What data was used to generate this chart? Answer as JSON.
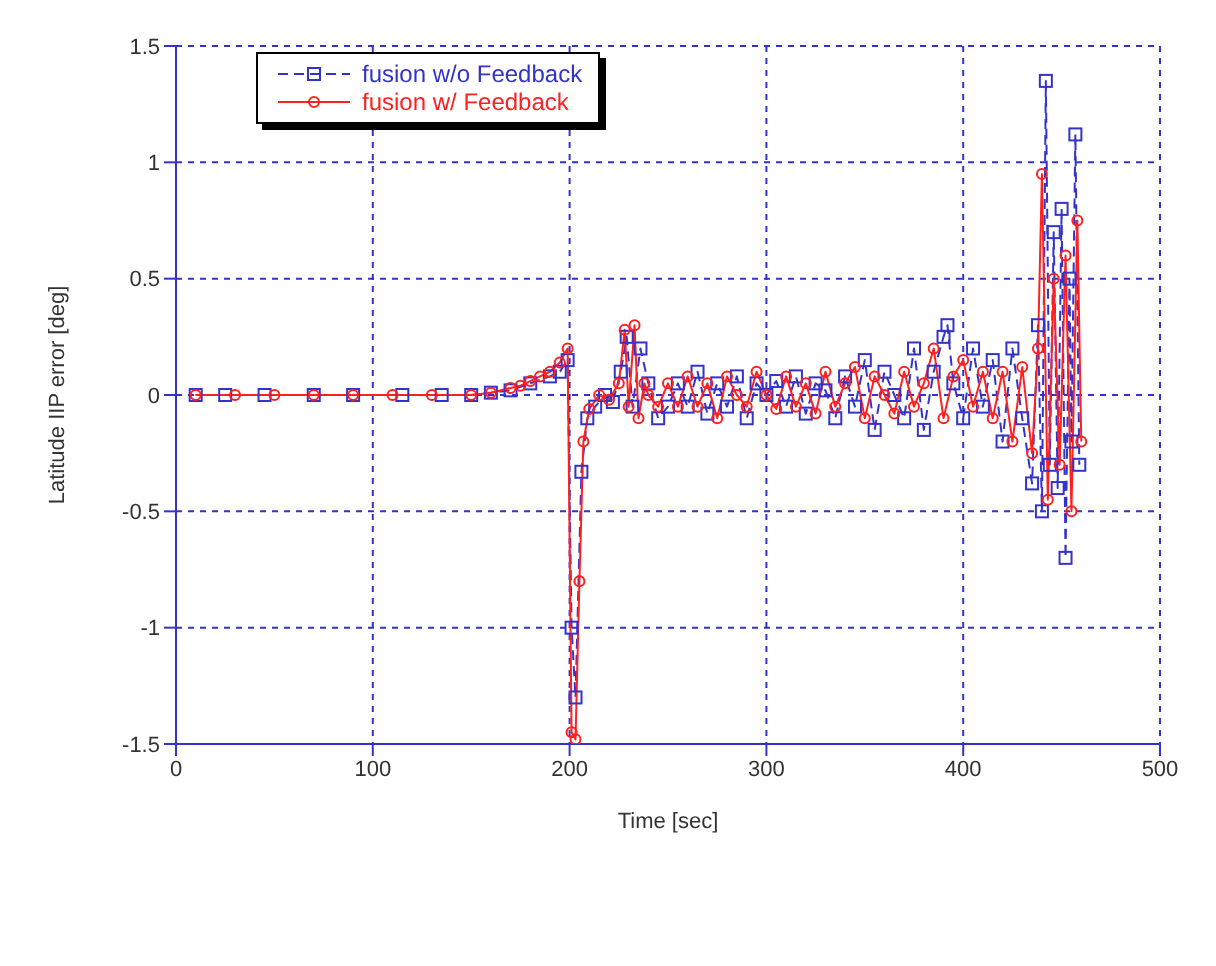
{
  "chart_data": {
    "type": "line",
    "xlabel": "Time [sec]",
    "ylabel": "Latitude IIP error [deg]",
    "xlim": [
      0,
      500
    ],
    "xticks": [
      0,
      100,
      200,
      300,
      400,
      500
    ],
    "ylim": [
      -1.5,
      1.5
    ],
    "yticks": [
      -1.5,
      -1,
      -0.5,
      0,
      0.5,
      1,
      1.5
    ],
    "grid": true,
    "legend": "top left",
    "series": [
      {
        "name": "fusion w/o Feedback",
        "color": "#3333cc",
        "line_style": "dashed",
        "marker": "square",
        "x": [
          10,
          25,
          45,
          70,
          90,
          115,
          135,
          150,
          160,
          170,
          180,
          190,
          195,
          199,
          201,
          203,
          206,
          209,
          213,
          218,
          222,
          226,
          229,
          232,
          236,
          240,
          245,
          250,
          255,
          260,
          265,
          270,
          275,
          280,
          285,
          290,
          295,
          300,
          305,
          310,
          315,
          320,
          325,
          330,
          335,
          340,
          345,
          350,
          355,
          360,
          365,
          370,
          375,
          380,
          385,
          390,
          392,
          395,
          400,
          405,
          410,
          415,
          420,
          425,
          430,
          435,
          438,
          440,
          442,
          444,
          446,
          448,
          450,
          452,
          454,
          455,
          457,
          459
        ],
        "values": [
          0,
          0,
          0,
          0,
          0,
          0,
          0,
          0,
          0.01,
          0.02,
          0.05,
          0.08,
          0.1,
          0.15,
          -1.0,
          -1.3,
          -0.33,
          -0.1,
          -0.05,
          0,
          -0.03,
          0.1,
          0.25,
          -0.05,
          0.2,
          0.05,
          -0.1,
          -0.05,
          0.05,
          -0.05,
          0.1,
          -0.08,
          0.05,
          -0.05,
          0.08,
          -0.1,
          0.05,
          0,
          0.06,
          -0.05,
          0.08,
          -0.08,
          0.05,
          0.02,
          -0.1,
          0.08,
          -0.05,
          0.15,
          -0.15,
          0.1,
          0,
          -0.1,
          0.2,
          -0.15,
          0.1,
          0.25,
          0.3,
          0.05,
          -0.1,
          0.2,
          -0.05,
          0.15,
          -0.2,
          0.2,
          -0.1,
          -0.38,
          0.3,
          -0.5,
          1.35,
          -0.3,
          0.7,
          -0.4,
          0.8,
          -0.7,
          0.5,
          -0.2,
          1.12,
          -0.3
        ]
      },
      {
        "name": "fusion w/ Feedback",
        "color": "#ff2020",
        "line_style": "solid",
        "marker": "circle",
        "x": [
          10,
          30,
          50,
          70,
          90,
          110,
          130,
          150,
          160,
          170,
          175,
          180,
          185,
          190,
          195,
          199,
          201,
          203,
          205,
          207,
          210,
          215,
          220,
          225,
          228,
          230,
          233,
          235,
          238,
          240,
          245,
          250,
          255,
          260,
          265,
          270,
          275,
          280,
          285,
          290,
          295,
          300,
          305,
          310,
          315,
          320,
          325,
          330,
          335,
          340,
          345,
          350,
          355,
          360,
          365,
          370,
          375,
          380,
          385,
          390,
          395,
          400,
          405,
          410,
          415,
          420,
          425,
          430,
          435,
          438,
          440,
          443,
          446,
          449,
          452,
          455,
          458,
          460
        ],
        "values": [
          0,
          0,
          0,
          0,
          0,
          0,
          0,
          0,
          0.01,
          0.03,
          0.04,
          0.06,
          0.08,
          0.1,
          0.14,
          0.2,
          -1.45,
          -1.48,
          -0.8,
          -0.2,
          -0.06,
          0,
          -0.02,
          0.05,
          0.28,
          -0.05,
          0.3,
          -0.1,
          0.05,
          0,
          -0.05,
          0.05,
          -0.05,
          0.08,
          -0.05,
          0.05,
          -0.1,
          0.08,
          0,
          -0.05,
          0.1,
          0,
          -0.06,
          0.08,
          -0.05,
          0.05,
          -0.08,
          0.1,
          -0.05,
          0.05,
          0.12,
          -0.1,
          0.08,
          0,
          -0.08,
          0.1,
          -0.05,
          0.05,
          0.2,
          -0.1,
          0.08,
          0.15,
          -0.05,
          0.1,
          -0.1,
          0.1,
          -0.2,
          0.12,
          -0.25,
          0.2,
          0.95,
          -0.45,
          0.5,
          -0.3,
          0.6,
          -0.5,
          0.75,
          -0.2
        ]
      }
    ]
  }
}
